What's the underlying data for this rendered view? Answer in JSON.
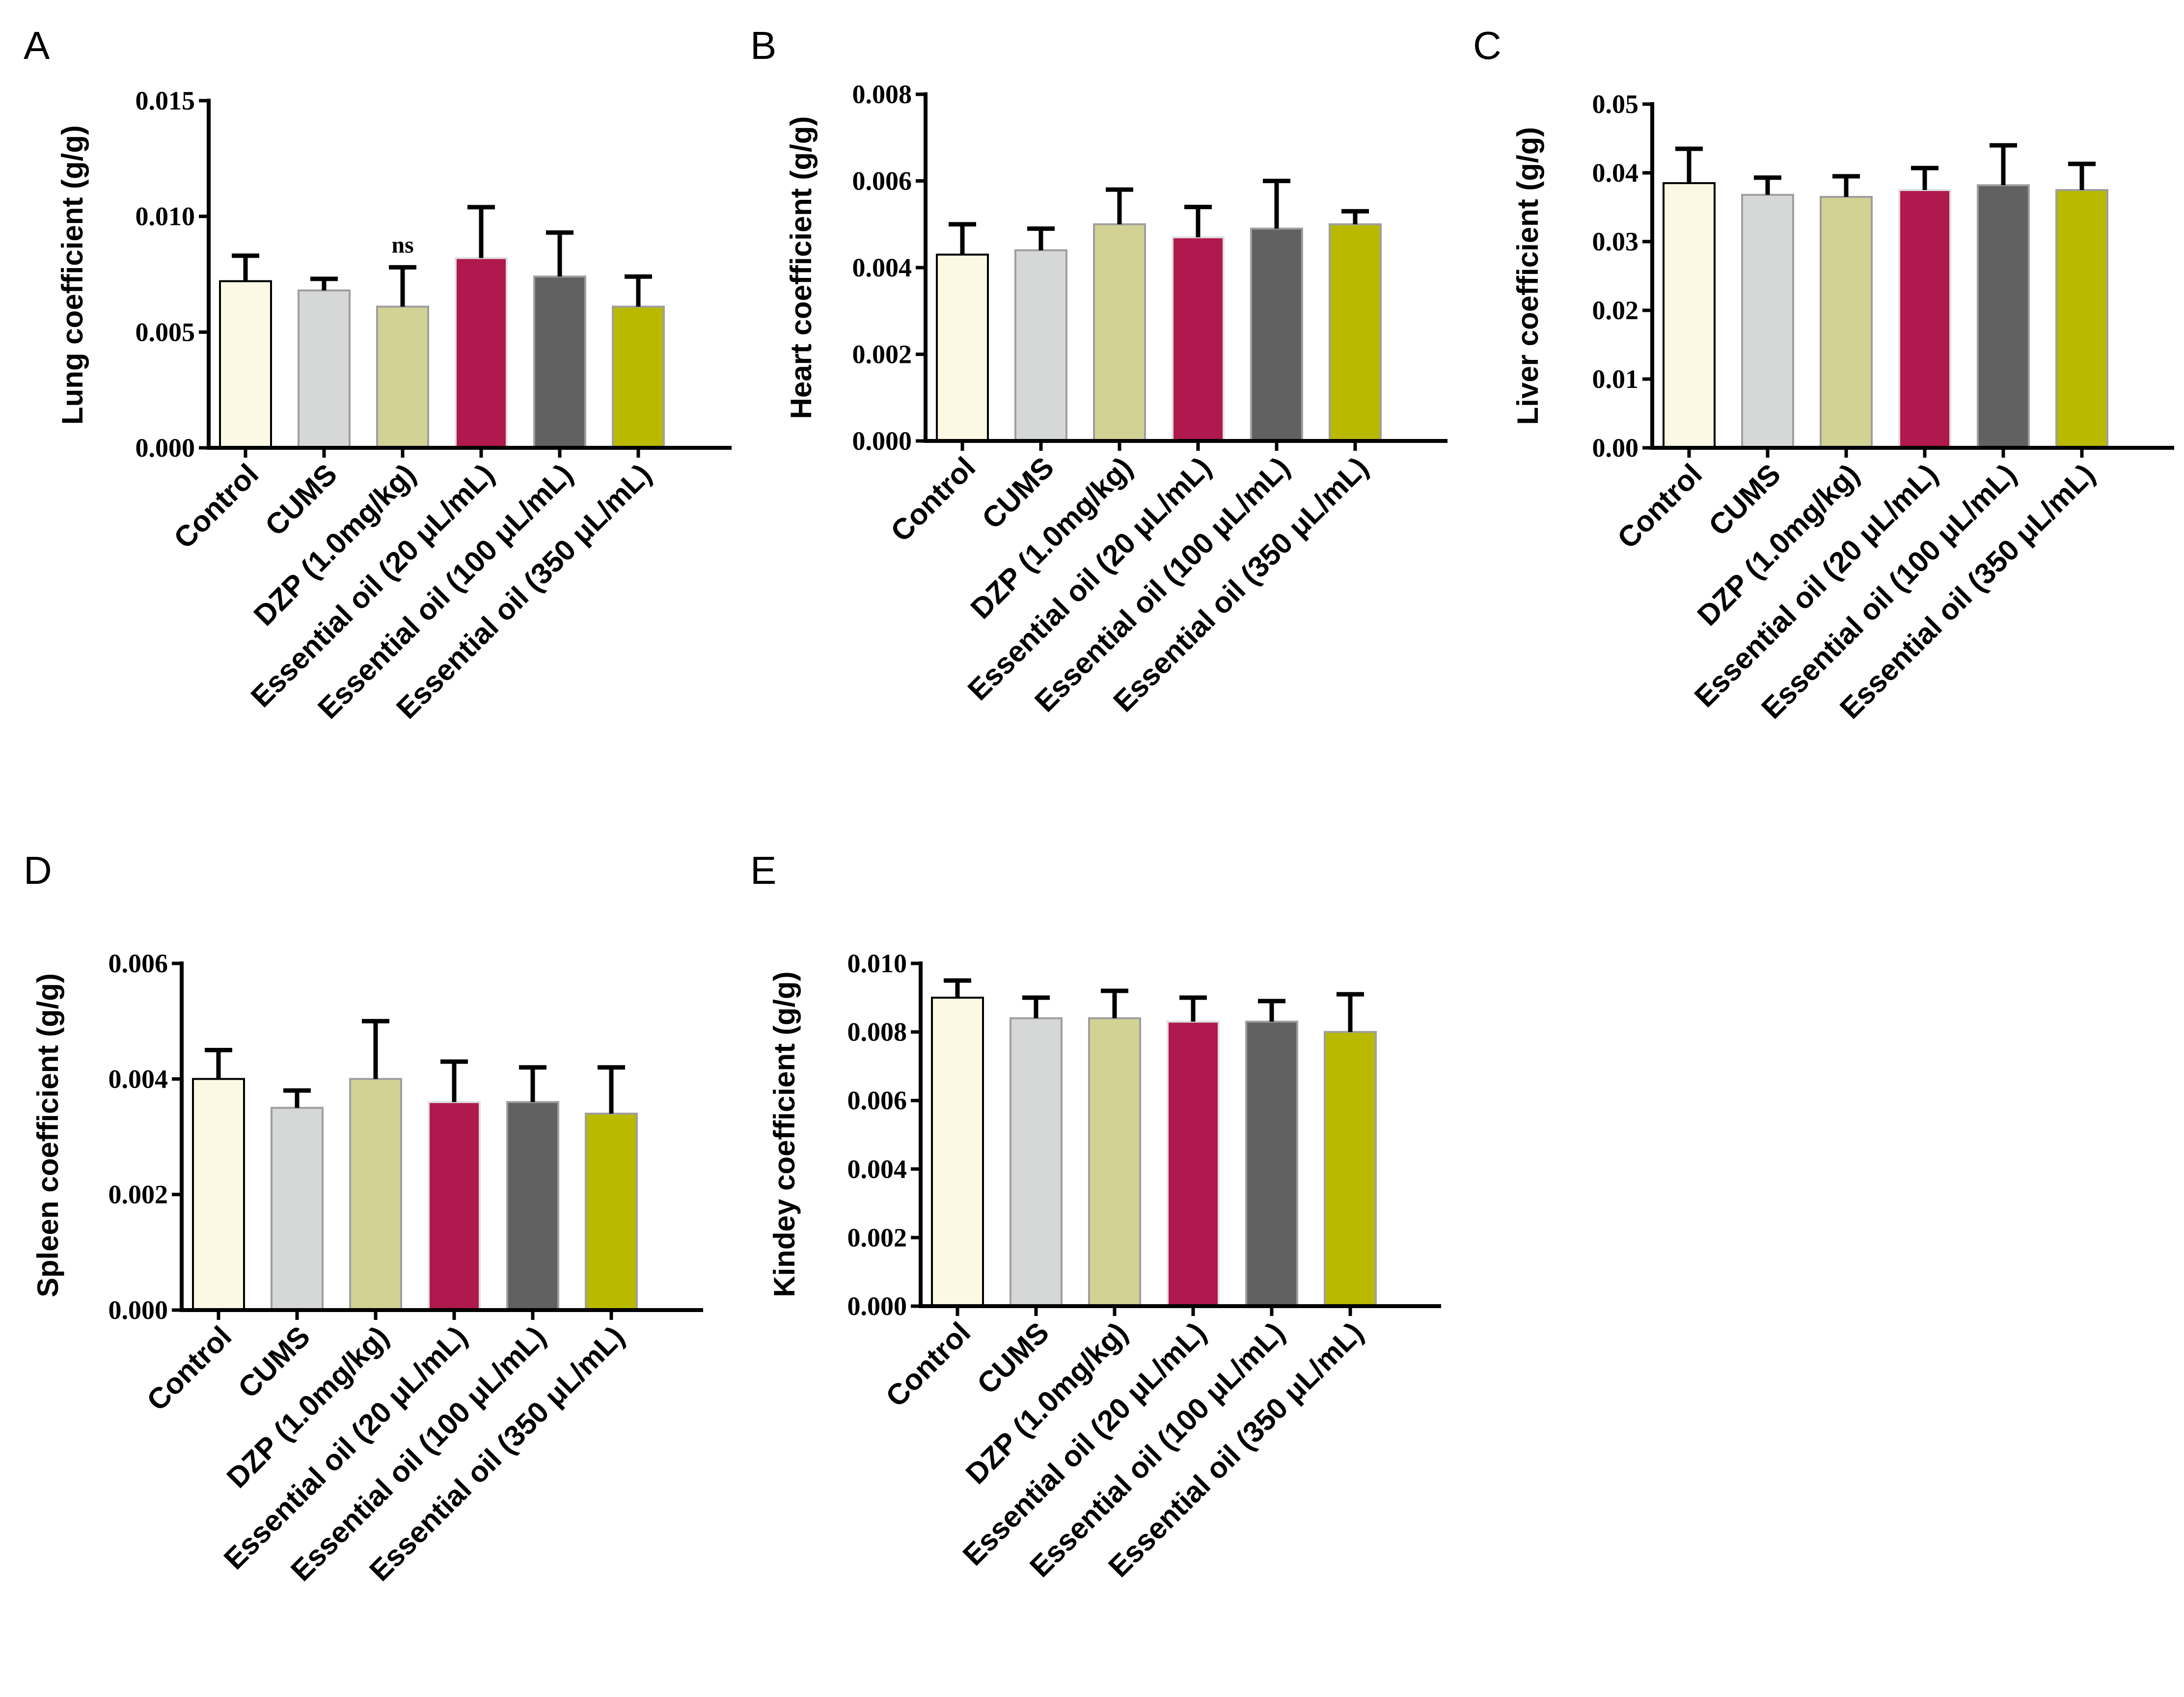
{
  "chart_data": [
    {
      "type": "bar",
      "panel": "A",
      "ylabel": "Lung coefficient (g/g)",
      "ylim": [
        0,
        0.015
      ],
      "yticks": [
        "0.000",
        "0.005",
        "0.010",
        "0.015"
      ],
      "categories": [
        "Control",
        "CUMS",
        "DZP (1.0mg/kg)",
        "Essential oil (20 μL/mL)",
        "Essential oil (100 μL/mL)",
        "Essential oil (350 μL/mL)"
      ],
      "values": [
        0.0072,
        0.0068,
        0.0061,
        0.0082,
        0.0074,
        0.0061
      ],
      "errors": [
        0.0011,
        0.0005,
        0.0017,
        0.0022,
        0.0019,
        0.0013
      ],
      "annotations": [
        {
          "index": 2,
          "text": "ns"
        }
      ]
    },
    {
      "type": "bar",
      "panel": "B",
      "ylabel": "Heart coefficient (g/g)",
      "ylim": [
        0,
        0.008
      ],
      "yticks": [
        "0.000",
        "0.002",
        "0.004",
        "0.006",
        "0.008"
      ],
      "categories": [
        "Control",
        "CUMS",
        "DZP (1.0mg/kg)",
        "Essential oil (20 μL/mL)",
        "Essential oil (100 μL/mL)",
        "Essential oil (350 μL/mL)"
      ],
      "values": [
        0.0043,
        0.0044,
        0.005,
        0.0047,
        0.0049,
        0.005
      ],
      "errors": [
        0.0007,
        0.0005,
        0.0008,
        0.0007,
        0.0011,
        0.0003
      ],
      "annotations": []
    },
    {
      "type": "bar",
      "panel": "C",
      "ylabel": "Liver coefficient (g/g)",
      "ylim": [
        0,
        0.05
      ],
      "yticks": [
        "0.00",
        "0.01",
        "0.02",
        "0.03",
        "0.04",
        "0.05"
      ],
      "categories": [
        "Control",
        "CUMS",
        "DZP (1.0mg/kg)",
        "Essential oil (20 μL/mL)",
        "Essential oil (100 μL/mL)",
        "Essential oil (350 μL/mL)"
      ],
      "values": [
        0.0385,
        0.0368,
        0.0365,
        0.0375,
        0.0382,
        0.0375
      ],
      "errors": [
        0.005,
        0.0025,
        0.003,
        0.0032,
        0.0058,
        0.0038
      ],
      "annotations": []
    },
    {
      "type": "bar",
      "panel": "D",
      "ylabel": "Spleen coefficient (g/g)",
      "ylim": [
        0,
        0.006
      ],
      "yticks": [
        "0.000",
        "0.002",
        "0.004",
        "0.006"
      ],
      "categories": [
        "Control",
        "CUMS",
        "DZP (1.0mg/kg)",
        "Essential oil (20 μL/mL)",
        "Essential oil (100 μL/mL)",
        "Essential oil (350 μL/mL)"
      ],
      "values": [
        0.004,
        0.0035,
        0.004,
        0.0036,
        0.0036,
        0.0034
      ],
      "errors": [
        0.0005,
        0.0003,
        0.001,
        0.0007,
        0.0006,
        0.0008
      ],
      "annotations": []
    },
    {
      "type": "bar",
      "panel": "E",
      "ylabel": "Kindey coefficient (g/g)",
      "ylim": [
        0,
        0.01
      ],
      "yticks": [
        "0.000",
        "0.002",
        "0.004",
        "0.006",
        "0.008",
        "0.010"
      ],
      "categories": [
        "Control",
        "CUMS",
        "DZP (1.0mg/kg)",
        "Essential oil (20 μL/mL)",
        "Essential oil (100 μL/mL)",
        "Essential oil (350 μL/mL)"
      ],
      "values": [
        0.009,
        0.0084,
        0.0084,
        0.0083,
        0.0083,
        0.008
      ],
      "errors": [
        0.0005,
        0.0006,
        0.0008,
        0.0007,
        0.0006,
        0.0011
      ],
      "annotations": []
    }
  ],
  "bar_colors": [
    "#FBF9E4",
    "#D6D7D7",
    "#D3D295",
    "#B0194D",
    "#616161",
    "#B9BA00"
  ],
  "bar_strokes": [
    "#000000",
    "#9E9E9E",
    "#9E9E9E",
    "#E0E0E0",
    "#9E9E9E",
    "#9E9E9E"
  ]
}
